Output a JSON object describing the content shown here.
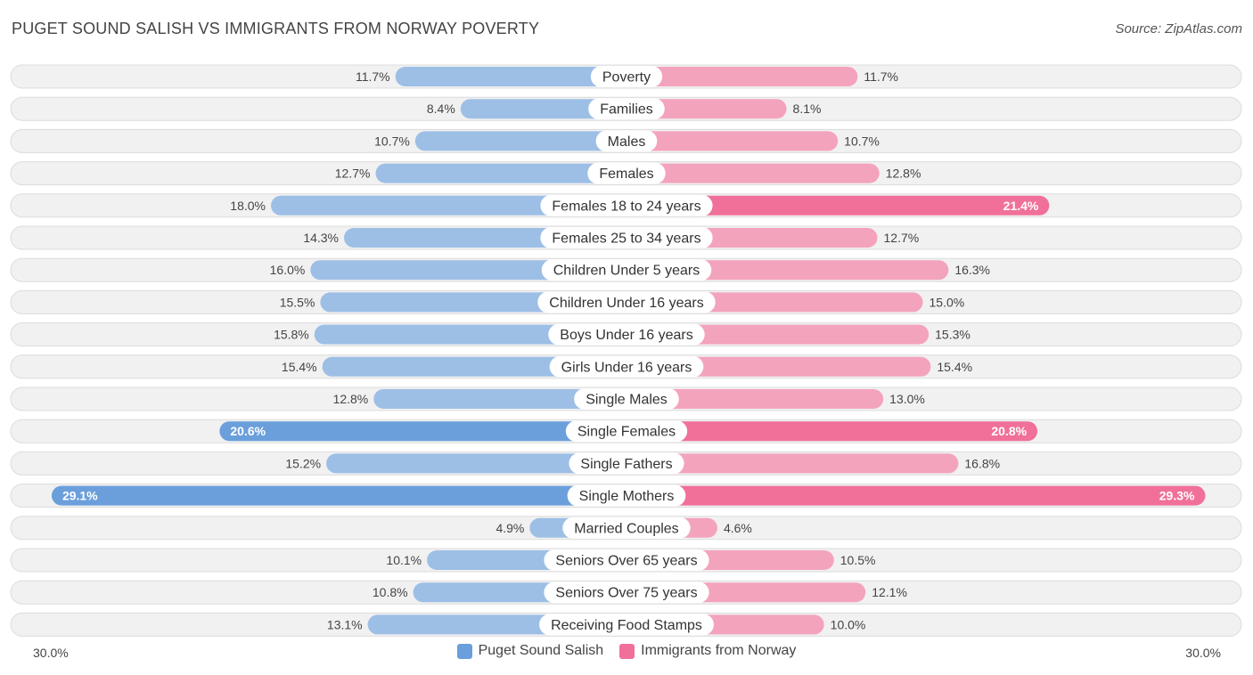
{
  "header": {
    "title": "PUGET SOUND SALISH VS IMMIGRANTS FROM NORWAY POVERTY",
    "source": "Source: ZipAtlas.com"
  },
  "colors": {
    "left_bar": "#9dbfe6",
    "left_bar_strong": "#6a9fdc",
    "right_bar": "#f4a3bd",
    "right_bar_strong": "#f07099",
    "row_bg": "#f1f1f1",
    "row_border": "#dcdcdc"
  },
  "legend": {
    "left_label": "Puget Sound Salish",
    "right_label": "Immigrants from Norway",
    "left_color": "#6a9fdc",
    "right_color": "#f07099"
  },
  "axis": {
    "left_label": "30.0%",
    "right_label": "30.0%"
  },
  "chart_data": {
    "type": "bar",
    "orientation": "horizontal-diverging",
    "title": "PUGET SOUND SALISH VS IMMIGRANTS FROM NORWAY POVERTY",
    "xlim": [
      0,
      30
    ],
    "categories": [
      "Poverty",
      "Families",
      "Males",
      "Females",
      "Females 18 to 24 years",
      "Females 25 to 34 years",
      "Children Under 5 years",
      "Children Under 16 years",
      "Boys Under 16 years",
      "Girls Under 16 years",
      "Single Males",
      "Single Females",
      "Single Fathers",
      "Single Mothers",
      "Married Couples",
      "Seniors Over 65 years",
      "Seniors Over 75 years",
      "Receiving Food Stamps"
    ],
    "series": [
      {
        "name": "Puget Sound Salish",
        "values": [
          11.7,
          8.4,
          10.7,
          12.7,
          18.0,
          14.3,
          16.0,
          15.5,
          15.8,
          15.4,
          12.8,
          20.6,
          15.2,
          29.1,
          4.9,
          10.1,
          10.8,
          13.1
        ],
        "labels": [
          "11.7%",
          "8.4%",
          "10.7%",
          "12.7%",
          "18.0%",
          "14.3%",
          "16.0%",
          "15.5%",
          "15.8%",
          "15.4%",
          "12.8%",
          "20.6%",
          "15.2%",
          "29.1%",
          "4.9%",
          "10.1%",
          "10.8%",
          "13.1%"
        ]
      },
      {
        "name": "Immigrants from Norway",
        "values": [
          11.7,
          8.1,
          10.7,
          12.8,
          21.4,
          12.7,
          16.3,
          15.0,
          15.3,
          15.4,
          13.0,
          20.8,
          16.8,
          29.3,
          4.6,
          10.5,
          12.1,
          10.0
        ],
        "labels": [
          "11.7%",
          "8.1%",
          "10.7%",
          "12.8%",
          "21.4%",
          "12.7%",
          "16.3%",
          "15.0%",
          "15.3%",
          "15.4%",
          "13.0%",
          "20.8%",
          "16.8%",
          "29.3%",
          "4.6%",
          "10.5%",
          "12.1%",
          "10.0%"
        ]
      }
    ],
    "legend_position": "bottom-center"
  }
}
